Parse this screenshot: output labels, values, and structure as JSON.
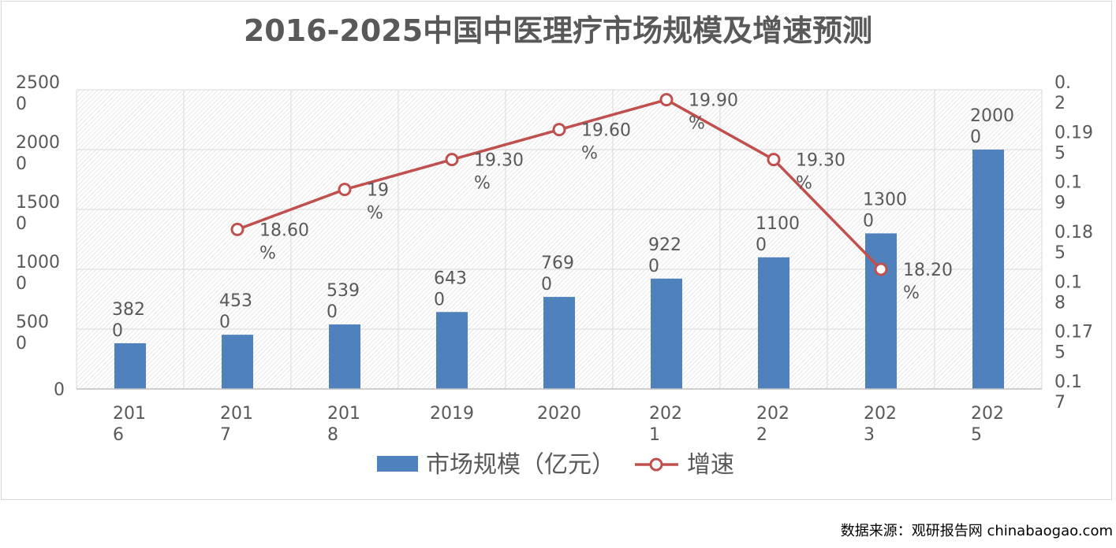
{
  "chart_data": {
    "type": "bar+line",
    "title": "2016-2025中国中医理疗市场规模及增速预测",
    "categories": [
      "2016",
      "2017",
      "2018",
      "2019",
      "2020",
      "2021",
      "2022",
      "2023",
      "2025"
    ],
    "series": [
      {
        "name": "市场规模（亿元）",
        "type": "bar",
        "axis": "left",
        "color": "#4f81bd",
        "values": [
          3820,
          4530,
          5390,
          6430,
          7690,
          9220,
          11000,
          13000,
          20000
        ],
        "labels": [
          "3820",
          "4530",
          "5390",
          "6430",
          "7690",
          "9220",
          "11000",
          "13000",
          "20000"
        ]
      },
      {
        "name": "增速",
        "type": "line",
        "axis": "right",
        "color": "#c0504d",
        "values": [
          null,
          0.186,
          0.19,
          0.193,
          0.196,
          0.199,
          0.193,
          0.182,
          null
        ],
        "labels": [
          "",
          "18.60%",
          "19%",
          "19.30%",
          "19.60%",
          "19.90%",
          "19.30%",
          "18.20%",
          ""
        ]
      }
    ],
    "y_left": {
      "ylim": [
        0,
        25000
      ],
      "ticks": [
        "0",
        "5000",
        "10000",
        "15000",
        "20000",
        "25000"
      ]
    },
    "y_right": {
      "ylim": [
        0.17,
        0.2
      ],
      "ticks": [
        "0.17",
        "0.175",
        "0.18",
        "0.185",
        "0.19",
        "0.195",
        "0.2"
      ]
    },
    "grid": true,
    "legend": "bottom"
  },
  "source": "数据来源：观研报告网 chinabaogao.com"
}
